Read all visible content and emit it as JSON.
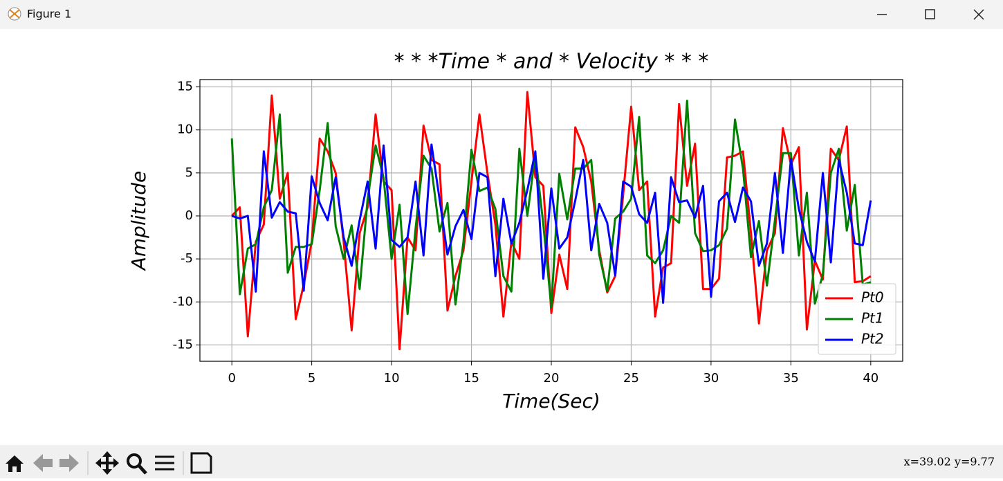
{
  "window": {
    "title": "Figure 1",
    "status": "x=39.02 y=9.77"
  },
  "chart_data": {
    "type": "line",
    "title": "* * *Time * and * Velocity * * *",
    "xlabel": "Time(Sec)",
    "ylabel": "Amplitude",
    "x": [
      0,
      0.5,
      1,
      1.5,
      2,
      2.5,
      3,
      3.5,
      4,
      4.5,
      5,
      5.5,
      6,
      6.5,
      7,
      7.5,
      8,
      8.5,
      9,
      9.5,
      10,
      10.5,
      11,
      11.5,
      12,
      12.5,
      13,
      13.5,
      14,
      14.5,
      15,
      15.5,
      16,
      16.5,
      17,
      17.5,
      18,
      18.5,
      19,
      19.5,
      20,
      20.5,
      21,
      21.5,
      22,
      22.5,
      23,
      23.5,
      24,
      24.5,
      25,
      25.5,
      26,
      26.5,
      27,
      27.5,
      28,
      28.5,
      29,
      29.5,
      30,
      30.5,
      31,
      31.5,
      32,
      32.5,
      33,
      33.5,
      34,
      34.5,
      35,
      35.5,
      36,
      36.5,
      37,
      37.5,
      38,
      38.5,
      39,
      39.5,
      40
    ],
    "series": [
      {
        "name": "Pt0",
        "color": "#ff0000",
        "values": [
          0,
          1,
          -14,
          -3,
          -1,
          14,
          2,
          5,
          -12,
          -8,
          -3,
          9,
          7.5,
          5,
          -3,
          -13.3,
          -2,
          1,
          11.8,
          4,
          3,
          -15.5,
          -2.5,
          -4,
          10.5,
          6.5,
          6,
          -11,
          -7,
          -4,
          4,
          11.8,
          5,
          -1,
          -11.7,
          -3,
          -5,
          14.4,
          4.5,
          3.5,
          -11.3,
          -4.5,
          -8.5,
          10.3,
          8,
          4,
          -4,
          -8.9,
          -7,
          2.5,
          12.7,
          3,
          4,
          -11.7,
          -6,
          -5.5,
          13,
          3.5,
          8.4,
          -8.5,
          -8.5,
          -7.3,
          6.8,
          7,
          7.5,
          -2,
          -12.5,
          -4,
          -2,
          10.2,
          6,
          8,
          -13.2,
          -5.2,
          -7.4,
          7.8,
          6.5,
          10.4,
          -7.7,
          -7.6,
          -7
        ]
      },
      {
        "name": "Pt1",
        "color": "#008000",
        "values": [
          9,
          -9.1,
          -3.8,
          -3.3,
          1,
          3,
          11.8,
          -6.6,
          -3.6,
          -3.6,
          -3.3,
          3,
          10.8,
          -1.2,
          -5,
          -1.1,
          -8.5,
          2,
          8.2,
          4.4,
          -5,
          1.3,
          -11.4,
          -1.5,
          7,
          5.5,
          -1.8,
          1.5,
          -10.3,
          -3,
          7.7,
          2.9,
          3.3,
          0.8,
          -7,
          -8.8,
          7.8,
          0,
          7.2,
          -1,
          -10.6,
          4.9,
          -0.4,
          5.5,
          5.5,
          6.5,
          -4.5,
          -8.7,
          -0.3,
          0.5,
          2,
          11.5,
          -4.6,
          -5.5,
          -4,
          0,
          -0.8,
          13.4,
          -2,
          -4.1,
          -4,
          -3.4,
          -1.5,
          11.2,
          5.5,
          -4.8,
          -0.6,
          -8.1,
          -0.5,
          7.3,
          7.3,
          -4.6,
          2.7,
          -10.2,
          -6.8,
          5,
          7.8,
          -1.7,
          3.6,
          -8,
          -7.7
        ]
      },
      {
        "name": "Pt2",
        "color": "#0000ff",
        "values": [
          0,
          -0.3,
          0,
          -8.8,
          7.5,
          -0.2,
          1.6,
          0.5,
          0.3,
          -8.7,
          4.6,
          1.5,
          -0.5,
          4.5,
          -2.5,
          -5.8,
          -0.5,
          4,
          -3.8,
          8.2,
          -2.8,
          -3.6,
          -2.5,
          4,
          -4.6,
          8.3,
          2,
          -4.5,
          -1.2,
          0.7,
          -2.7,
          5,
          4.5,
          -7,
          2,
          -3.2,
          -0.8,
          3,
          7.5,
          -7.3,
          3.2,
          -3.8,
          -2.5,
          1.8,
          6.5,
          -4,
          1.4,
          -0.8,
          -6.9,
          4,
          3.4,
          0.2,
          -0.8,
          2.7,
          -10.1,
          4.5,
          1.6,
          1.8,
          -0.2,
          3.5,
          -9.4,
          1.7,
          2.7,
          -0.7,
          3.3,
          1.7,
          -5.8,
          -3.2,
          5,
          -4.3,
          6.6,
          0.8,
          -3,
          -5.3,
          5,
          -5.4,
          6.5,
          2.7,
          -3.2,
          -3.4,
          1.8
        ]
      }
    ],
    "xlim": [
      -2,
      42
    ],
    "ylim": [
      -16.9,
      15.85
    ],
    "xticks": [
      0,
      5,
      10,
      15,
      20,
      25,
      30,
      35,
      40
    ],
    "yticks": [
      -15,
      -10,
      -5,
      0,
      5,
      10,
      15
    ],
    "grid": true,
    "legend": "lower right"
  }
}
